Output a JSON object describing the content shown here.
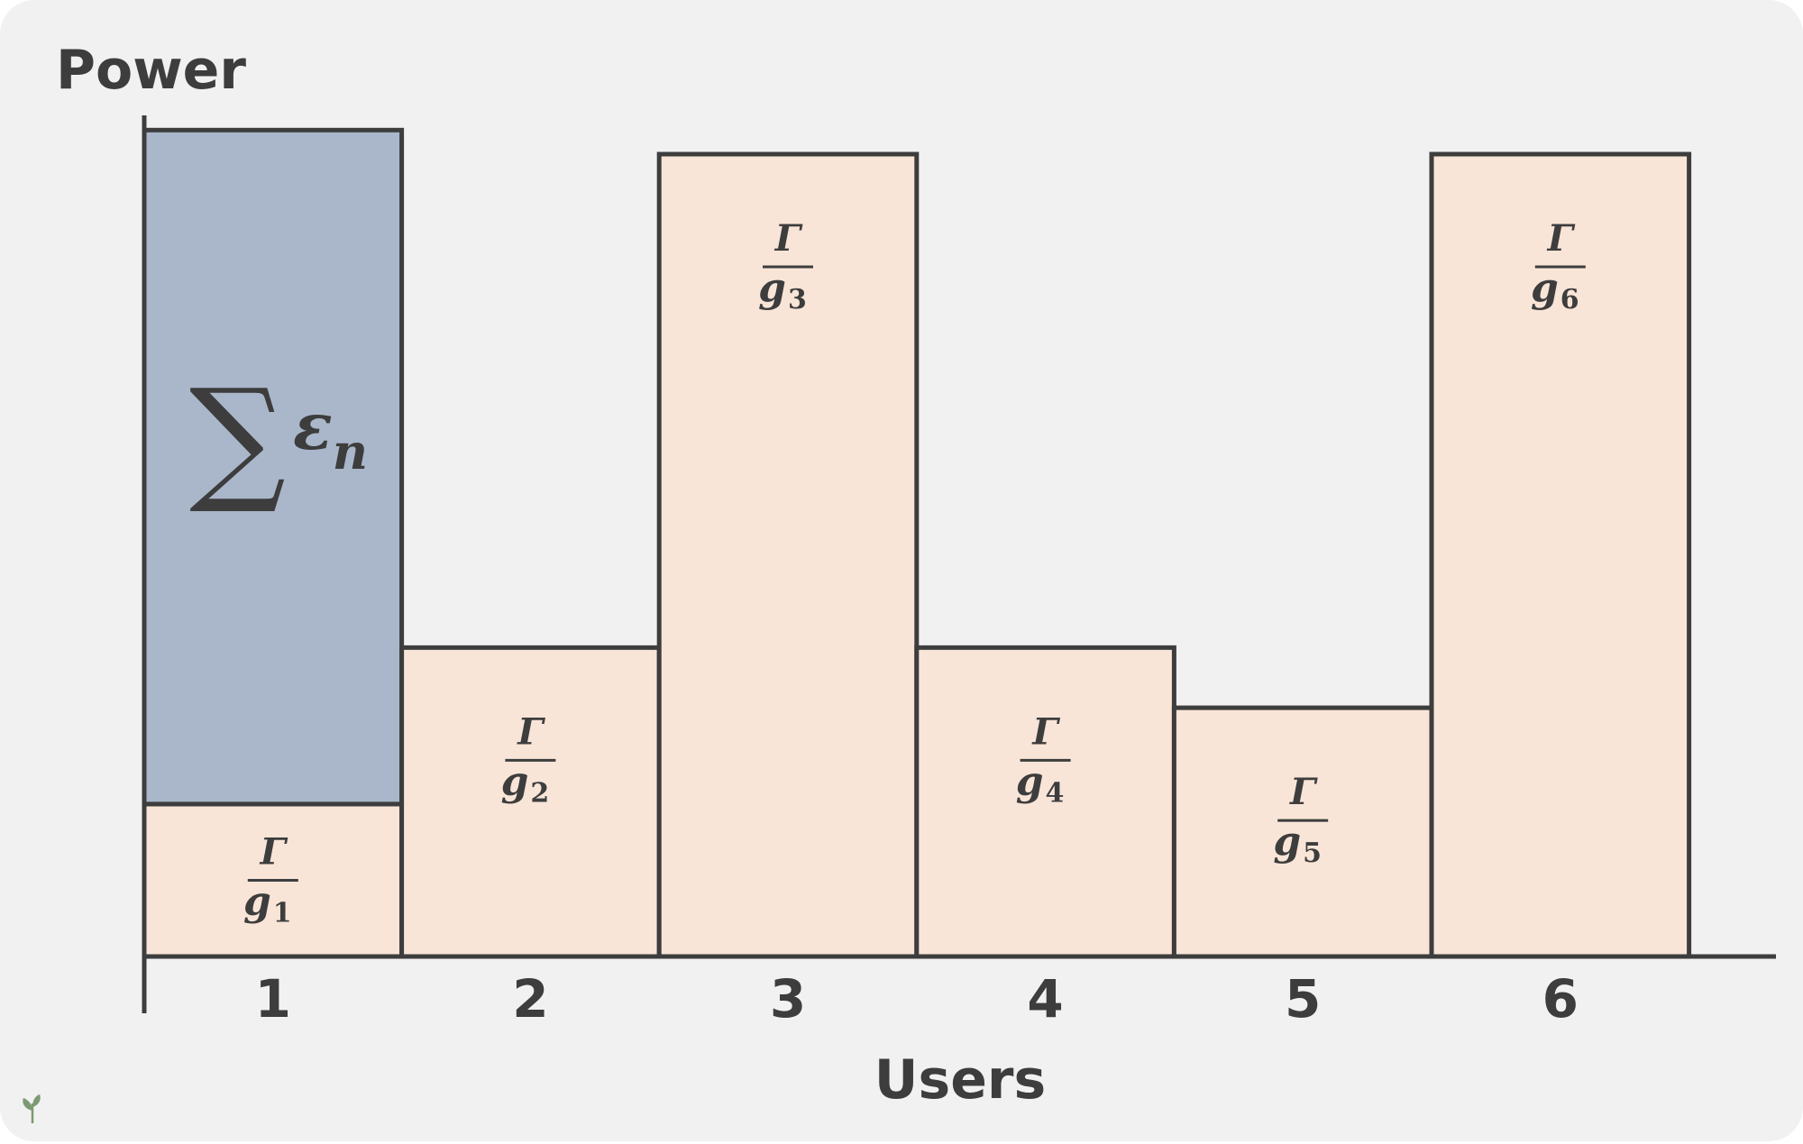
{
  "chart_data": {
    "type": "bar",
    "title": "",
    "ylabel": "Power",
    "xlabel": "Users",
    "categories": [
      "1",
      "2",
      "3",
      "4",
      "5",
      "6"
    ],
    "ylim": [
      0,
      100
    ],
    "series": [
      {
        "name": "",
        "values": [
          19,
          38.5,
          100,
          38.5,
          31,
          100
        ],
        "color": "#f9e5d8"
      },
      {
        "name": "",
        "values": [
          84,
          0,
          0,
          0,
          0,
          0
        ],
        "color": "#aab7ca"
      }
    ],
    "annotations": [
      {
        "user": "1",
        "numerator": "Γ",
        "base": "g",
        "sub": "1"
      },
      {
        "user": "2",
        "numerator": "Γ",
        "base": "g",
        "sub": "2"
      },
      {
        "user": "3",
        "numerator": "Γ",
        "base": "g",
        "sub": "3"
      },
      {
        "user": "4",
        "numerator": "Γ",
        "base": "g",
        "sub": "4"
      },
      {
        "user": "5",
        "numerator": "Γ",
        "base": "g",
        "sub": "5"
      },
      {
        "user": "6",
        "numerator": "Γ",
        "base": "g",
        "sub": "6"
      }
    ],
    "stack_annotation": {
      "user": "1",
      "sigma": "∑",
      "symbol": "ε",
      "sub": "n"
    },
    "grid": false,
    "legend": "none"
  },
  "colors": {
    "background": "#f1f1f1",
    "stroke": "#3d3d3d",
    "base_fill": "#f9e5d8",
    "stack_fill": "#aab7ca"
  },
  "watermark_icon": "sprout-icon"
}
